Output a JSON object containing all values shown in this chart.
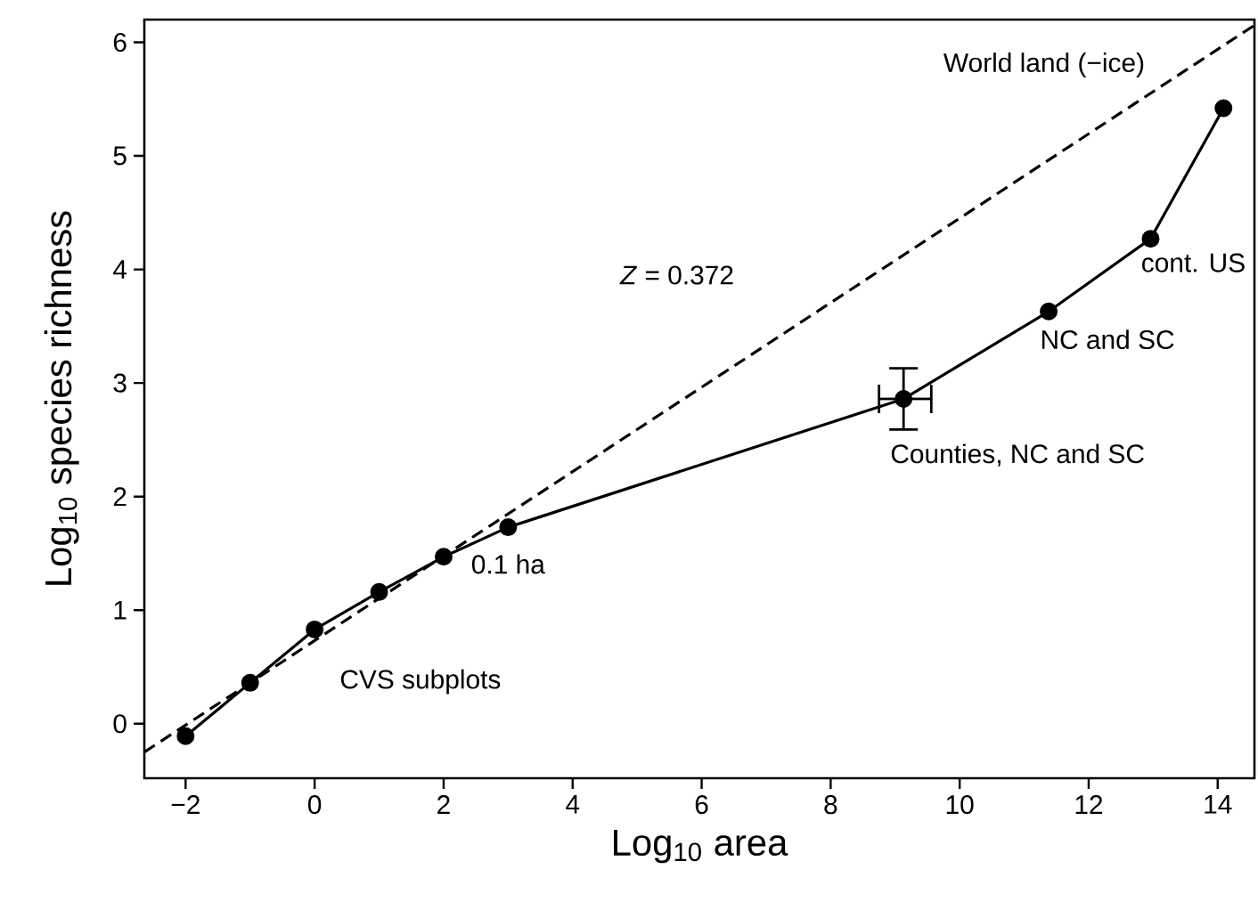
{
  "chart_data": {
    "type": "line",
    "xlabel": "Log$_{10}$ area",
    "ylabel": "Log$_{10}$ species richness",
    "xlim": [
      -2.64,
      14.57
    ],
    "ylim": [
      -0.48,
      6.2
    ],
    "xticks": [
      {
        "value": -2,
        "label": "−2"
      },
      0,
      2,
      4,
      6,
      8,
      10,
      12,
      14
    ],
    "yticks": [
      0,
      1,
      2,
      3,
      4,
      5,
      6
    ],
    "grid": false,
    "series": [
      {
        "color": "#000000",
        "marker": "circle",
        "line_style": "solid",
        "x": [
          -2,
          -1,
          0,
          1,
          2,
          3,
          9.13,
          11.38,
          12.96,
          14.09
        ],
        "values": [
          -0.11,
          0.36,
          0.83,
          1.16,
          1.47,
          1.73,
          2.86,
          3.63,
          4.27,
          5.42
        ],
        "errors": [
          null,
          null,
          null,
          null,
          null,
          null,
          [
            2.59,
            3.13
          ],
          null,
          null,
          null
        ],
        "xerrors": [
          null,
          null,
          null,
          null,
          null,
          null,
          [
            8.75,
            9.56
          ],
          null,
          null,
          null
        ]
      },
      {
        "type": "line",
        "color": "#000000",
        "marker": "none",
        "line_style": "dashed",
        "x": [
          -2.64,
          14.57
        ],
        "values": [
          -0.25,
          6.15
        ]
      }
    ],
    "annotations": [
      {
        "text": "0.1 ha",
        "x": 3,
        "y": 1.73
      },
      {
        "text": "Counties, NC and SC",
        "x": 9.13,
        "y": 2.86
      },
      {
        "text": "NC and SC",
        "x": 11.38,
        "y": 3.63
      },
      {
        "text": "cont. US",
        "x": 12.96,
        "y": 4.27
      },
      "World land (−ice)",
      "CVS subplots",
      "*Z* = 0.372"
    ]
  }
}
